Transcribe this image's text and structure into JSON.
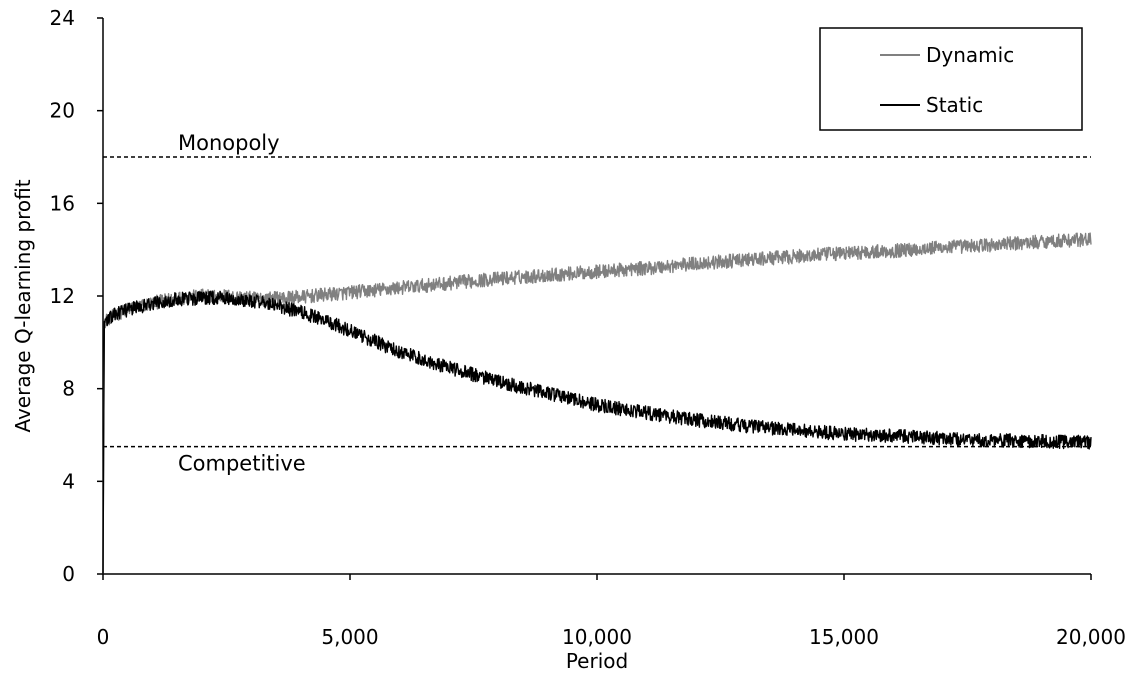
{
  "chart_data": {
    "type": "line",
    "xlabel": "Period",
    "ylabel": "Average Q-learning profit",
    "xlim": [
      0,
      20000
    ],
    "ylim": [
      0,
      24
    ],
    "x_ticks": [
      0,
      5000,
      10000,
      15000,
      20000
    ],
    "x_tick_labels": [
      "0",
      "5,000",
      "10,000",
      "15,000",
      "20,000"
    ],
    "y_ticks": [
      0,
      4,
      8,
      12,
      16,
      20,
      24
    ],
    "y_tick_labels": [
      "0",
      "4",
      "8",
      "12",
      "16",
      "20",
      "24"
    ],
    "grid": false,
    "legend_position": "top-right",
    "reference_lines": [
      {
        "label": "Monopoly",
        "y": 18,
        "style": "dashed"
      },
      {
        "label": "Competitive",
        "y": 5.5,
        "style": "dashed"
      }
    ],
    "series": [
      {
        "name": "Dynamic",
        "color": "#808080",
        "x": [
          0,
          25,
          100,
          250,
          500,
          1000,
          1500,
          2000,
          2500,
          3000,
          3500,
          4000,
          5000,
          6000,
          7000,
          8000,
          9000,
          10000,
          11000,
          12000,
          13000,
          14000,
          15000,
          16000,
          17000,
          18000,
          19000,
          20000
        ],
        "y": [
          0,
          10.9,
          11.0,
          11.2,
          11.4,
          11.7,
          11.9,
          12.0,
          12.0,
          11.9,
          11.9,
          11.95,
          12.15,
          12.35,
          12.55,
          12.75,
          12.9,
          13.05,
          13.2,
          13.4,
          13.55,
          13.7,
          13.85,
          13.95,
          14.1,
          14.2,
          14.35,
          14.45
        ],
        "noise_amplitude": 0.3
      },
      {
        "name": "Static",
        "color": "#000000",
        "x": [
          0,
          25,
          100,
          250,
          500,
          1000,
          1500,
          2000,
          2500,
          3000,
          3500,
          4000,
          4500,
          5000,
          6000,
          7000,
          8000,
          9000,
          10000,
          11000,
          12000,
          13000,
          14000,
          15000,
          16000,
          17000,
          18000,
          19000,
          20000
        ],
        "y": [
          0,
          10.9,
          11.0,
          11.2,
          11.4,
          11.7,
          11.85,
          11.9,
          11.9,
          11.8,
          11.6,
          11.3,
          10.95,
          10.5,
          9.6,
          8.9,
          8.3,
          7.8,
          7.3,
          6.95,
          6.65,
          6.4,
          6.2,
          6.05,
          5.95,
          5.85,
          5.78,
          5.72,
          5.68
        ],
        "noise_amplitude": 0.3
      }
    ]
  }
}
